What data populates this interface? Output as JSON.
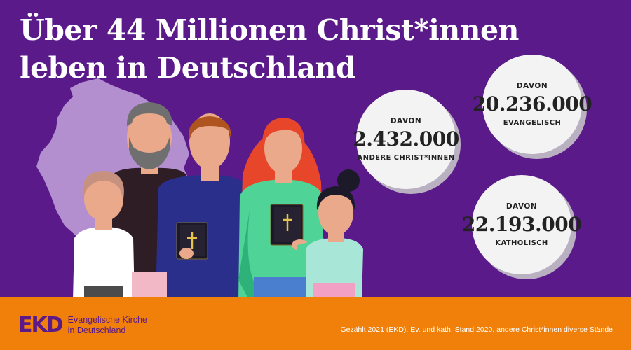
{
  "headline": {
    "line1": "Über 44 Millionen Christ*innen",
    "line2": "leben in Deutschland"
  },
  "stats": [
    {
      "label_top": "DAVON",
      "value": "2.432.000",
      "label_bottom": "ANDERE CHRIST*INNEN"
    },
    {
      "label_top": "DAVON",
      "value": "20.236.000",
      "label_bottom": "EVANGELISCH"
    },
    {
      "label_top": "DAVON",
      "value": "22.193.000",
      "label_bottom": "KATHOLISCH"
    }
  ],
  "footer": {
    "logo_mark": "EKD",
    "logo_line1": "Evangelische Kirche",
    "logo_line2": "in Deutschland",
    "source": "Gezählt 2021 (EKD), Ev. und kath. Stand 2020, andere Christ*innen diverse Stände"
  },
  "colors": {
    "background": "#5a1a8a",
    "footer": "#f0800a",
    "map": "#b48fd0",
    "circle": "#f3f3f3"
  }
}
